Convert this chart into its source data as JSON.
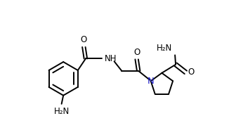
{
  "background": "#ffffff",
  "line_color": "#000000",
  "text_color": "#000000",
  "n_color": "#2222cc",
  "line_width": 1.4,
  "font_size": 8.5,
  "figsize": [
    3.36,
    1.92
  ],
  "dpi": 100,
  "xlim": [
    0.0,
    8.5
  ],
  "ylim": [
    0.5,
    6.5
  ]
}
